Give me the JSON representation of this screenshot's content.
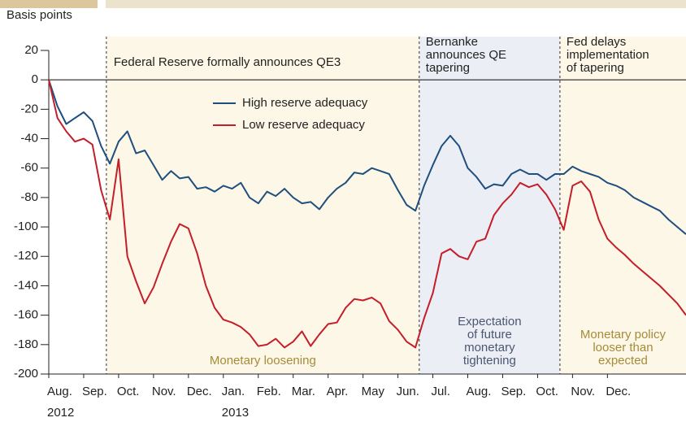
{
  "chart_data": {
    "type": "line",
    "y_label": "Basis points",
    "x": [
      0,
      0.25,
      0.5,
      0.75,
      1,
      1.25,
      1.5,
      1.75,
      2,
      2.25,
      2.5,
      2.75,
      3,
      3.25,
      3.5,
      3.75,
      4,
      4.25,
      4.5,
      4.75,
      5,
      5.25,
      5.5,
      5.75,
      6,
      6.25,
      6.5,
      6.75,
      7,
      7.25,
      7.5,
      7.75,
      8,
      8.25,
      8.5,
      8.75,
      9,
      9.25,
      9.5,
      9.75,
      10,
      10.25,
      10.5,
      10.75,
      11,
      11.25,
      11.5,
      11.75,
      12,
      12.25,
      12.5,
      12.75,
      13,
      13.25,
      13.5,
      13.75,
      14,
      14.25,
      14.5,
      14.75,
      15,
      15.25,
      15.5,
      15.75,
      16,
      16.25,
      16.5,
      16.75,
      17,
      17.25,
      17.5,
      17.75,
      18,
      18.25
    ],
    "series": [
      {
        "name": "High reserve adequacy",
        "color": "#1f4f7f",
        "values": [
          0,
          -18,
          -30,
          -26,
          -22,
          -28,
          -45,
          -57,
          -42,
          -35,
          -50,
          -48,
          -58,
          -68,
          -62,
          -67,
          -66,
          -74,
          -73,
          -76,
          -72,
          -74,
          -70,
          -80,
          -84,
          -76,
          -79,
          -74,
          -80,
          -84,
          -83,
          -88,
          -80,
          -74,
          -70,
          -63,
          -64,
          -60,
          -62,
          -64,
          -75,
          -85,
          -89,
          -72,
          -58,
          -45,
          -38,
          -45,
          -60,
          -66,
          -74,
          -71,
          -72,
          -64,
          -61,
          -64,
          -64,
          -68,
          -64,
          -64,
          -59,
          -62,
          -64,
          -66,
          -70,
          -72,
          -75,
          -80,
          -83,
          -86,
          -89,
          -95,
          -100,
          -105
        ]
      },
      {
        "name": "Low reserve adequacy",
        "color": "#c41e2a",
        "values": [
          0,
          -26,
          -35,
          -42,
          -40,
          -44,
          -75,
          -95,
          -54,
          -120,
          -137,
          -152,
          -141,
          -125,
          -110,
          -98,
          -101,
          -118,
          -140,
          -155,
          -163,
          -165,
          -168,
          -173,
          -181,
          -180,
          -176,
          -182,
          -178,
          -171,
          -181,
          -173,
          -166,
          -165,
          -155,
          -149,
          -150,
          -148,
          -152,
          -164,
          -170,
          -178,
          -182,
          -162,
          -145,
          -118,
          -115,
          -120,
          -122,
          -110,
          -108,
          -92,
          -84,
          -78,
          -70,
          -73,
          -71,
          -78,
          -88,
          -102,
          -72,
          -69,
          -76,
          -95,
          -108,
          -114,
          -119,
          -125,
          -130,
          -135,
          -140,
          -146,
          -152,
          -160
        ]
      }
    ],
    "xlim": [
      0,
      18.25
    ],
    "xticks": [
      {
        "value": 0,
        "label": "Aug."
      },
      {
        "value": 1,
        "label": "Sep."
      },
      {
        "value": 2,
        "label": "Oct."
      },
      {
        "value": 3,
        "label": "Nov."
      },
      {
        "value": 4,
        "label": "Dec."
      },
      {
        "value": 5,
        "label": "Jan."
      },
      {
        "value": 6,
        "label": "Feb."
      },
      {
        "value": 7,
        "label": "Mar."
      },
      {
        "value": 8,
        "label": "Apr."
      },
      {
        "value": 9,
        "label": "May"
      },
      {
        "value": 10,
        "label": "Jun."
      },
      {
        "value": 11,
        "label": "Jul."
      },
      {
        "value": 12,
        "label": "Aug."
      },
      {
        "value": 13,
        "label": "Sep."
      },
      {
        "value": 14,
        "label": "Oct."
      },
      {
        "value": 15,
        "label": "Nov."
      },
      {
        "value": 16,
        "label": "Dec."
      }
    ],
    "year_ticks": [
      {
        "value": 0,
        "label": "2012"
      },
      {
        "value": 5,
        "label": "2013"
      }
    ],
    "ylim": [
      -200,
      20
    ],
    "yticks": [
      20,
      0,
      -20,
      -40,
      -60,
      -80,
      -100,
      -120,
      -140,
      -160,
      -180,
      -200
    ],
    "events": [
      {
        "x": 1.65,
        "label": [
          "Federal Reserve formally announces QE3"
        ],
        "region_label": [
          "Monetary loosening"
        ],
        "shade": "#fcf7e6",
        "label_color": "#a68b3c"
      },
      {
        "x": 10.61,
        "label": [
          "Bernanke",
          "announces QE",
          "tapering"
        ],
        "region_label": [
          "Expectation",
          "of future",
          "monetary",
          "tightening"
        ],
        "shade": "#eceef5",
        "label_color": "#4b5670"
      },
      {
        "x": 14.64,
        "label": [
          "Fed delays",
          "implementation",
          "of tapering"
        ],
        "region_label": [
          "Monetary policy",
          "looser than",
          "expected"
        ],
        "shade": "#fcf7e6",
        "label_color": "#a68b3c"
      }
    ]
  }
}
